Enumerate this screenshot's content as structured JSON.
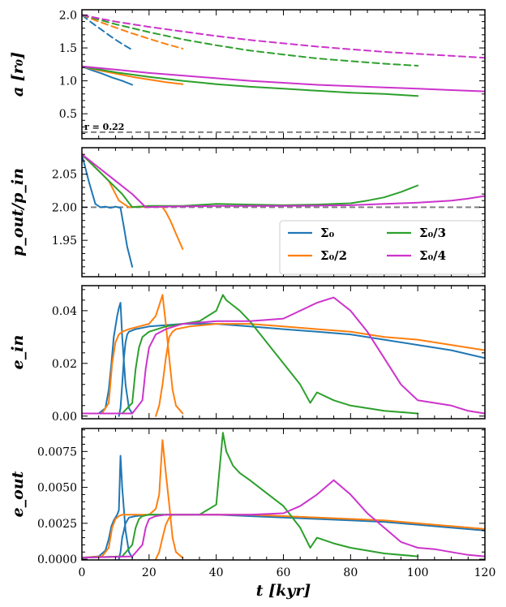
{
  "chart_data": {
    "type": "line",
    "shared_x": {
      "label": "t [kyr]",
      "lim": [
        0,
        120
      ],
      "ticks": [
        0,
        20,
        40,
        60,
        80,
        100,
        120
      ],
      "tick_labels": [
        "0",
        "20",
        "40",
        "60",
        "80",
        "100",
        "120"
      ]
    },
    "colors": {
      "s0": "#1f77b4",
      "s2": "#ff7f0e",
      "s3": "#2ca02c",
      "s4": "#cc33cc",
      "ref": "#808080"
    },
    "legend": {
      "position": "lower-right of panel 2",
      "entries": [
        {
          "key": "s0",
          "label": "Σ₀"
        },
        {
          "key": "s3",
          "label": "Σ₀/3"
        },
        {
          "key": "s2",
          "label": "Σ₀/2"
        },
        {
          "key": "s4",
          "label": "Σ₀/4"
        }
      ]
    },
    "panels": [
      {
        "id": "a",
        "ylabel": "a [r₀]",
        "ylim": [
          0.12,
          2.08
        ],
        "yticks": [
          0.5,
          1.0,
          1.5,
          2.0
        ],
        "ytick_labels": [
          "0.5",
          "1.0",
          "1.5",
          "2.0"
        ],
        "annotation": "r = 0.22",
        "hline": {
          "y": 0.22,
          "style": "dashed",
          "color_key": "ref"
        },
        "series": [
          {
            "key": "s0",
            "role": "outer",
            "style": "dashed",
            "x": [
              0,
              3,
              6,
              9,
              12,
              15
            ],
            "y": [
              2.0,
              1.88,
              1.77,
              1.66,
              1.56,
              1.47
            ]
          },
          {
            "key": "s2",
            "role": "outer",
            "style": "dashed",
            "x": [
              0,
              5,
              10,
              15,
              20,
              25,
              30
            ],
            "y": [
              2.0,
              1.9,
              1.81,
              1.72,
              1.64,
              1.56,
              1.49
            ]
          },
          {
            "key": "s3",
            "role": "outer",
            "style": "dashed",
            "x": [
              0,
              10,
              20,
              30,
              40,
              50,
              60,
              70,
              80,
              90,
              100
            ],
            "y": [
              2.0,
              1.86,
              1.74,
              1.63,
              1.54,
              1.46,
              1.4,
              1.34,
              1.3,
              1.26,
              1.23
            ]
          },
          {
            "key": "s4",
            "role": "outer",
            "style": "dashed",
            "x": [
              0,
              10,
              20,
              30,
              40,
              50,
              60,
              70,
              80,
              90,
              100,
              110,
              120
            ],
            "y": [
              2.0,
              1.9,
              1.82,
              1.75,
              1.68,
              1.62,
              1.57,
              1.52,
              1.48,
              1.44,
              1.41,
              1.38,
              1.35
            ]
          },
          {
            "key": "s0",
            "role": "inner",
            "style": "solid",
            "x": [
              0,
              3,
              6,
              9,
              12,
              15
            ],
            "y": [
              1.22,
              1.16,
              1.11,
              1.05,
              1.0,
              0.94
            ]
          },
          {
            "key": "s2",
            "role": "inner",
            "style": "solid",
            "x": [
              0,
              5,
              10,
              15,
              20,
              25,
              30
            ],
            "y": [
              1.22,
              1.16,
              1.11,
              1.06,
              1.02,
              0.98,
              0.95
            ]
          },
          {
            "key": "s3",
            "role": "inner",
            "style": "solid",
            "x": [
              0,
              10,
              20,
              30,
              40,
              50,
              60,
              70,
              80,
              90,
              100
            ],
            "y": [
              1.22,
              1.13,
              1.06,
              1.0,
              0.95,
              0.91,
              0.88,
              0.85,
              0.82,
              0.8,
              0.77
            ]
          },
          {
            "key": "s4",
            "role": "inner",
            "style": "solid",
            "x": [
              0,
              10,
              20,
              30,
              40,
              50,
              60,
              70,
              80,
              90,
              100,
              110,
              120
            ],
            "y": [
              1.22,
              1.17,
              1.12,
              1.08,
              1.04,
              1.0,
              0.97,
              0.94,
              0.92,
              0.9,
              0.88,
              0.86,
              0.84
            ]
          }
        ]
      },
      {
        "id": "period_ratio",
        "ylabel": "p_out/p_in",
        "ylim": [
          1.895,
          2.09
        ],
        "yticks": [
          1.95,
          2.0,
          2.05
        ],
        "ytick_labels": [
          "1.95",
          "2.00",
          "2.05"
        ],
        "hline": {
          "y": 2.0,
          "style": "dashed",
          "color_key": "ref"
        },
        "series": [
          {
            "key": "s0",
            "x": [
              0,
              2,
              4,
              5.5,
              7,
              8.5,
              10,
              11.5,
              12.5,
              13.5,
              15
            ],
            "y": [
              2.08,
              2.04,
              2.005,
              2.0,
              2.001,
              1.999,
              2.001,
              1.999,
              1.97,
              1.94,
              1.91
            ]
          },
          {
            "key": "s2",
            "x": [
              0,
              4,
              8,
              11,
              14,
              17,
              20,
              22,
              24,
              25,
              26.5,
              28,
              30
            ],
            "y": [
              2.08,
              2.06,
              2.04,
              2.01,
              2.0,
              2.001,
              2.0,
              2.002,
              2.0,
              1.993,
              1.978,
              1.96,
              1.937
            ]
          },
          {
            "key": "s3",
            "x": [
              0,
              4,
              8,
              12,
              15,
              20,
              30,
              40,
              50,
              60,
              70,
              80,
              85,
              90,
              95,
              100
            ],
            "y": [
              2.08,
              2.06,
              2.04,
              2.02,
              2.0,
              2.002,
              2.002,
              2.005,
              2.004,
              2.003,
              2.004,
              2.006,
              2.01,
              2.015,
              2.023,
              2.033
            ]
          },
          {
            "key": "s4",
            "x": [
              0,
              5,
              10,
              15,
              19,
              25,
              40,
              60,
              80,
              90,
              100,
              110,
              115,
              120
            ],
            "y": [
              2.08,
              2.06,
              2.04,
              2.02,
              2.0,
              2.001,
              2.002,
              2.002,
              2.003,
              2.005,
              2.007,
              2.01,
              2.013,
              2.017
            ]
          }
        ]
      },
      {
        "id": "e_in",
        "ylabel": "e_in",
        "ylim": [
          -0.001,
          0.0495
        ],
        "yticks": [
          0.0,
          0.02,
          0.04
        ],
        "ytick_labels": [
          "0.00",
          "0.02",
          "0.04"
        ],
        "series": [
          {
            "key": "s0",
            "x": [
              0,
              5,
              7,
              8,
              8.8,
              9.5,
              10,
              10.5,
              11,
              11.5,
              12,
              13,
              14,
              15
            ],
            "y": [
              0.001,
              0.001,
              0.003,
              0.01,
              0.02,
              0.03,
              0.034,
              0.038,
              0.041,
              0.043,
              0.03,
              0.012,
              0.003,
              0.001
            ]
          },
          {
            "key": "s0",
            "x": [
              11,
              11.5,
              12,
              12.5,
              13,
              13.5,
              14,
              16,
              20,
              30,
              40,
              50,
              60,
              70,
              80,
              90,
              100,
              110,
              120
            ],
            "y": [
              0.0,
              0.003,
              0.012,
              0.022,
              0.028,
              0.031,
              0.032,
              0.033,
              0.034,
              0.035,
              0.035,
              0.034,
              0.033,
              0.032,
              0.031,
              0.029,
              0.027,
              0.025,
              0.022
            ]
          },
          {
            "key": "s2",
            "x": [
              0,
              6,
              8,
              9,
              10,
              11,
              12,
              14,
              17,
              20,
              22,
              23,
              24,
              25,
              26,
              27,
              28,
              30
            ],
            "y": [
              0.001,
              0.001,
              0.005,
              0.02,
              0.028,
              0.031,
              0.032,
              0.033,
              0.034,
              0.035,
              0.038,
              0.042,
              0.046,
              0.035,
              0.022,
              0.01,
              0.004,
              0.001
            ]
          },
          {
            "key": "s2",
            "x": [
              22,
              23,
              24,
              25,
              26,
              27,
              28,
              32,
              40,
              50,
              60,
              70,
              80,
              90,
              100,
              110,
              120
            ],
            "y": [
              0.0,
              0.004,
              0.012,
              0.022,
              0.03,
              0.032,
              0.033,
              0.034,
              0.035,
              0.035,
              0.034,
              0.033,
              0.032,
              0.03,
              0.029,
              0.027,
              0.025
            ]
          },
          {
            "key": "s3",
            "x": [
              0,
              12,
              15,
              16,
              17,
              18,
              20,
              25,
              30,
              35,
              40,
              42,
              43,
              45,
              47,
              50,
              55,
              60,
              65,
              68,
              70,
              75,
              80,
              90,
              100
            ],
            "y": [
              0.001,
              0.001,
              0.005,
              0.018,
              0.026,
              0.03,
              0.032,
              0.034,
              0.035,
              0.036,
              0.04,
              0.046,
              0.044,
              0.042,
              0.04,
              0.036,
              0.028,
              0.02,
              0.012,
              0.005,
              0.009,
              0.006,
              0.004,
              0.002,
              0.001
            ]
          },
          {
            "key": "s4",
            "x": [
              0,
              15,
              18,
              19,
              20,
              22,
              25,
              30,
              40,
              50,
              60,
              65,
              70,
              75,
              80,
              85,
              90,
              95,
              100,
              105,
              110,
              115,
              120
            ],
            "y": [
              0.001,
              0.001,
              0.006,
              0.018,
              0.026,
              0.031,
              0.033,
              0.035,
              0.036,
              0.036,
              0.037,
              0.04,
              0.043,
              0.045,
              0.04,
              0.032,
              0.022,
              0.012,
              0.006,
              0.005,
              0.004,
              0.002,
              0.001
            ]
          }
        ]
      },
      {
        "id": "e_out",
        "ylabel": "e_out",
        "ylim": [
          -5e-05,
          0.0091
        ],
        "yticks": [
          0.0,
          0.0025,
          0.005,
          0.0075
        ],
        "ytick_labels": [
          "0.0000",
          "0.0025",
          "0.0050",
          "0.0075"
        ],
        "series": [
          {
            "key": "s0",
            "x": [
              0,
              5,
              7,
              8,
              8.8,
              9.5,
              10,
              10.5,
              11,
              11.5,
              12,
              13,
              14,
              15
            ],
            "y": [
              0.0001,
              0.0002,
              0.0006,
              0.0014,
              0.0023,
              0.0027,
              0.0029,
              0.0031,
              0.0034,
              0.0072,
              0.005,
              0.002,
              0.0005,
              0.0001
            ]
          },
          {
            "key": "s0",
            "x": [
              11,
              11.5,
              12,
              13,
              14,
              16,
              20,
              30,
              40,
              50,
              60,
              70,
              80,
              90,
              100,
              110,
              120
            ],
            "y": [
              0.0,
              0.0005,
              0.0015,
              0.0025,
              0.0029,
              0.003,
              0.0031,
              0.0031,
              0.0031,
              0.003,
              0.0029,
              0.0028,
              0.0027,
              0.0026,
              0.0024,
              0.0022,
              0.002
            ]
          },
          {
            "key": "s2",
            "x": [
              0,
              6,
              8,
              9,
              10,
              11,
              12,
              14,
              17,
              20,
              22,
              23,
              24,
              25,
              26,
              27,
              28,
              30
            ],
            "y": [
              0.0001,
              0.0002,
              0.0008,
              0.0022,
              0.0028,
              0.003,
              0.0031,
              0.0031,
              0.0031,
              0.0031,
              0.0035,
              0.0045,
              0.0083,
              0.006,
              0.0038,
              0.0015,
              0.0005,
              0.0001
            ]
          },
          {
            "key": "s2",
            "x": [
              22,
              23,
              24,
              25,
              26,
              27,
              28,
              32,
              40,
              50,
              60,
              70,
              80,
              90,
              100,
              110,
              120
            ],
            "y": [
              0.0,
              0.0005,
              0.0015,
              0.0024,
              0.0029,
              0.0031,
              0.0031,
              0.0031,
              0.0031,
              0.0031,
              0.003,
              0.0029,
              0.0028,
              0.0027,
              0.0025,
              0.0023,
              0.0021
            ]
          },
          {
            "key": "s3",
            "x": [
              0,
              12,
              15,
              16,
              17,
              18,
              20,
              25,
              30,
              35,
              40,
              42,
              43,
              45,
              47,
              50,
              55,
              60,
              65,
              68,
              70,
              75,
              80,
              90,
              100
            ],
            "y": [
              0.0001,
              0.0002,
              0.001,
              0.0022,
              0.0028,
              0.003,
              0.0031,
              0.0031,
              0.0031,
              0.0031,
              0.0038,
              0.0088,
              0.0075,
              0.0065,
              0.006,
              0.0055,
              0.0046,
              0.0037,
              0.0022,
              0.0008,
              0.0015,
              0.0011,
              0.0008,
              0.0004,
              0.0002
            ]
          },
          {
            "key": "s4",
            "x": [
              0,
              15,
              18,
              19,
              20,
              22,
              25,
              30,
              40,
              50,
              60,
              65,
              70,
              75,
              80,
              85,
              90,
              95,
              100,
              105,
              110,
              115,
              120
            ],
            "y": [
              0.0001,
              0.0002,
              0.001,
              0.0022,
              0.0028,
              0.003,
              0.0031,
              0.0031,
              0.0031,
              0.0031,
              0.0032,
              0.0037,
              0.0045,
              0.0055,
              0.0045,
              0.0032,
              0.0022,
              0.0012,
              0.0008,
              0.0007,
              0.0005,
              0.0003,
              0.0002
            ]
          }
        ]
      }
    ]
  }
}
